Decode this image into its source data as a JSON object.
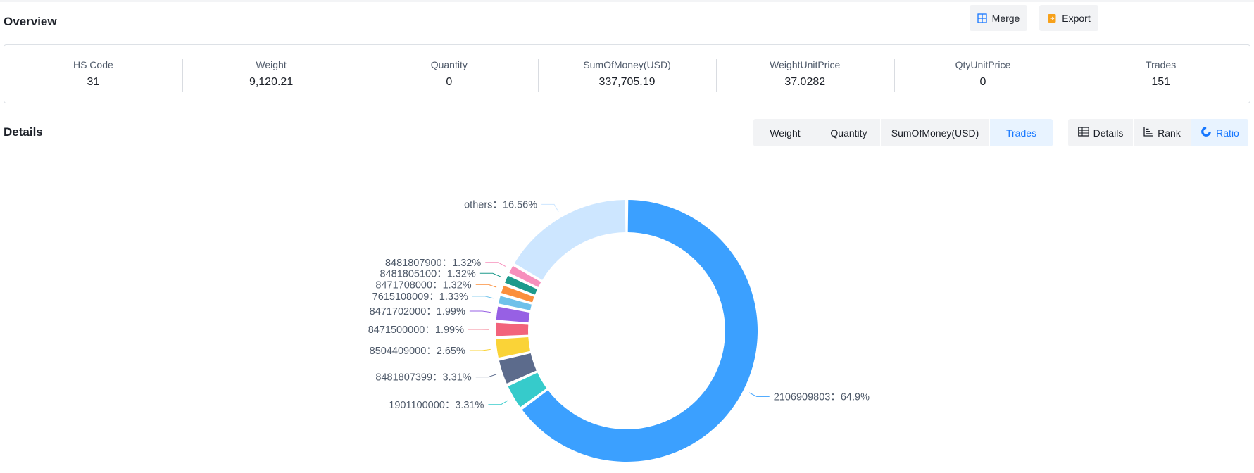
{
  "overview": {
    "title": "Overview",
    "merge_label": "Merge",
    "export_label": "Export",
    "stats": [
      {
        "label": "HS Code",
        "value": "31"
      },
      {
        "label": "Weight",
        "value": "9,120.21"
      },
      {
        "label": "Quantity",
        "value": "0"
      },
      {
        "label": "SumOfMoney(USD)",
        "value": "337,705.19"
      },
      {
        "label": "WeightUnitPrice",
        "value": "37.0282"
      },
      {
        "label": "QtyUnitPrice",
        "value": "0"
      },
      {
        "label": "Trades",
        "value": "151"
      }
    ]
  },
  "details": {
    "title": "Details",
    "metric_tabs": [
      "Weight",
      "Quantity",
      "SumOfMoney(USD)",
      "Trades"
    ],
    "active_metric": "Trades",
    "view_tabs": [
      "Details",
      "Rank",
      "Ratio"
    ],
    "active_view": "Ratio"
  },
  "colors": {
    "accent": "#1677ff",
    "button_bg": "#f2f3f5",
    "active_bg": "#e8f3ff",
    "export_icon": "#f7a11a"
  },
  "chart_data": {
    "type": "pie",
    "variant": "donut",
    "metric": "Trades",
    "slices": [
      {
        "name": "2106909803",
        "percent": 64.9,
        "label": "2106909803：64.9%",
        "color": "#3ba0ff"
      },
      {
        "name": "1901100000",
        "percent": 3.31,
        "label": "1901100000：3.31%",
        "color": "#36cbcb"
      },
      {
        "name": "8481807399",
        "percent": 3.31,
        "label": "8481807399：3.31%",
        "color": "#5c6b8c"
      },
      {
        "name": "8504409000",
        "percent": 2.65,
        "label": "8504409000：2.65%",
        "color": "#fad337"
      },
      {
        "name": "8471500000",
        "percent": 1.99,
        "label": "8471500000：1.99%",
        "color": "#f2637b"
      },
      {
        "name": "8471702000",
        "percent": 1.99,
        "label": "8471702000：1.99%",
        "color": "#9760e4"
      },
      {
        "name": "7615108009",
        "percent": 1.33,
        "label": "7615108009：1.33%",
        "color": "#6fc1ea"
      },
      {
        "name": "8471708000",
        "percent": 1.32,
        "label": "8471708000：1.32%",
        "color": "#fb8f3c"
      },
      {
        "name": "8481805100",
        "percent": 1.32,
        "label": "8481805100：1.32%",
        "color": "#1d9a8c"
      },
      {
        "name": "8481807900",
        "percent": 1.32,
        "label": "8481807900：1.32%",
        "color": "#f78fbc"
      },
      {
        "name": "others",
        "percent": 16.56,
        "label": "others：16.56%",
        "color": "#cde6ff"
      }
    ]
  }
}
